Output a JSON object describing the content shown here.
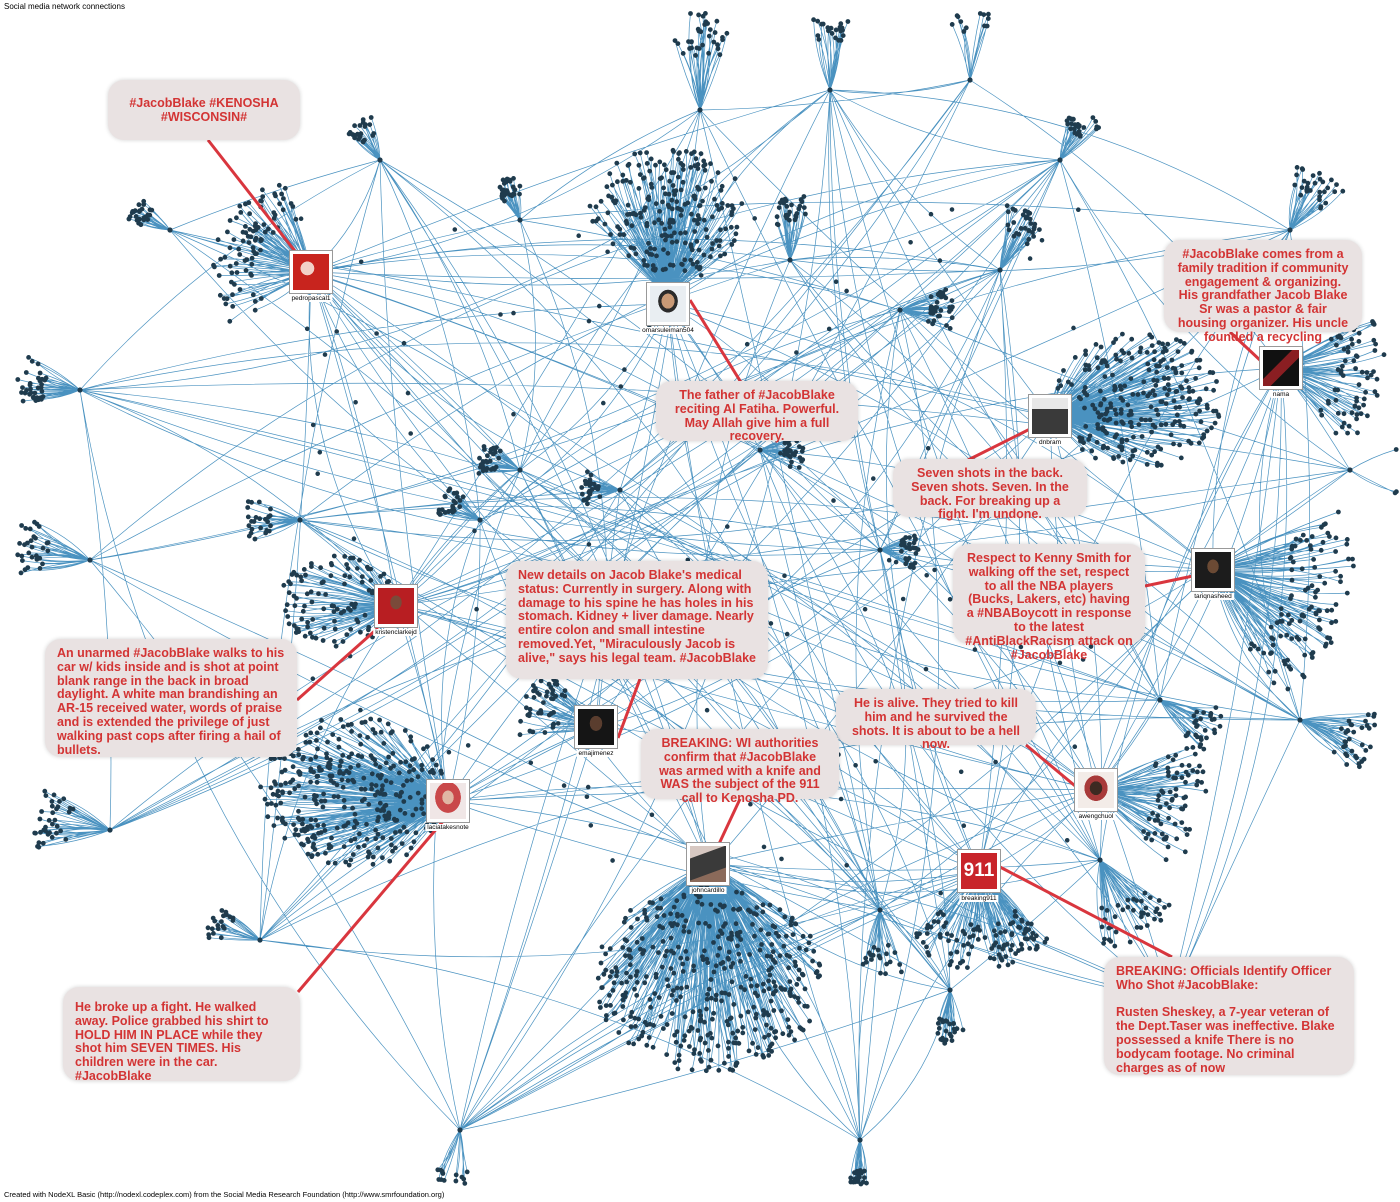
{
  "header": {
    "title": "Social media network connections"
  },
  "footer": {
    "credit": "Created with NodeXL Basic (http://nodexl.codeplex.com) from the Social Media Research Foundation (http://www.smrfoundation.org)"
  },
  "colors": {
    "edge": "#2a7fb5",
    "node": "#1f3b4d",
    "callout_bg": "#e9e2e2",
    "callout_text": "#d33434",
    "leader": "#d9363e"
  },
  "users": [
    {
      "name": "pedropascal1"
    },
    {
      "name": "omarsuleiman504"
    },
    {
      "name": "nama"
    },
    {
      "name": "dnbram"
    },
    {
      "name": "tariqnasheed"
    },
    {
      "name": "kristenclarkejd"
    },
    {
      "name": "emajimenez"
    },
    {
      "name": "awengchuol"
    },
    {
      "name": "laciatakesnote"
    },
    {
      "name": "johncardillo"
    },
    {
      "name": "breaking911"
    }
  ],
  "tweets": [
    {
      "text": "#JacobBlake #KENOSHA\n#WISCONSIN#"
    },
    {
      "text": "#JacobBlake comes from a family tradition if community engagement & organizing. His grandfather Jacob Blake Sr was a pastor & fair housing organizer. His uncle founded a recycling"
    },
    {
      "text": "The father of #JacobBlake reciting Al Fatiha. Powerful. May Allah give him a full recovery."
    },
    {
      "text": "Seven shots in the back. Seven shots. Seven. In the back. For breaking up a fight. I'm undone."
    },
    {
      "text": "Respect to Kenny Smith for walking off the set, respect to all the NBA players (Bucks, Lakers, etc) having a #NBABoycott in response to the latest #AntiBlackRacism attack on #JacobBlake"
    },
    {
      "text": "New details on Jacob Blake's medical status: Currently in surgery. Along with damage to his spine he has holes in his stomach. Kidney + liver damage. Nearly entire colon and small intestine removed.Yet, \"Miraculously Jacob is alive,\" says his legal team. #JacobBlake"
    },
    {
      "text": "An unarmed #JacobBlake walks to his car w/ kids inside and is shot at point blank range in the back in broad daylight. A white man brandishing an AR-15 received water, words of praise and is extended the privilege of just walking past cops after firing a hail of bullets."
    },
    {
      "text": "He is alive. They tried to kill him and he survived the shots. It is about to be a hell now."
    },
    {
      "text": "BREAKING: WI authorities confirm that #JacobBlake was armed with a knife and WAS the subject of the 911 call to Kenosha PD."
    },
    {
      "text": "He broke up a fight. He walked away. Police grabbed his shirt to HOLD HIM IN PLACE while they shot him SEVEN TIMES. His children were in the car. #JacobBlake"
    },
    {
      "text": "BREAKING: Officials Identify Officer Who Shot #JacobBlake:\n\nRusten Sheskey, a 7-year veteran of the Dept.Taser was ineffective. Blake possessed a knife There is no bodycam footage. No criminal charges as of now"
    }
  ],
  "avatar_badge": "911"
}
